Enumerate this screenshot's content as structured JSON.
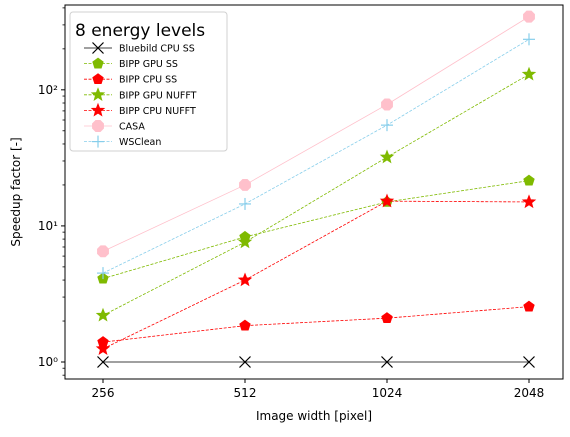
{
  "chart_data": {
    "type": "line",
    "title": "",
    "legend_title": "8 energy levels",
    "legend_position": "top-left",
    "xlabel": "Image width [pixel]",
    "ylabel": "Speedup factor [-]",
    "x_scale": "log2",
    "y_scale": "log",
    "x": [
      256,
      512,
      1024,
      2048
    ],
    "x_tick_labels": [
      "256",
      "512",
      "1024",
      "2048"
    ],
    "ylim": [
      0.75,
      420
    ],
    "y_ticks": [
      1,
      10,
      100
    ],
    "y_tick_labels": [
      "10⁰",
      "10¹",
      "10²"
    ],
    "grid": false,
    "series": [
      {
        "name": "Bluebild CPU SS",
        "color": "#000000",
        "marker": "x",
        "dash": "solid",
        "values": [
          1,
          1,
          1,
          1
        ]
      },
      {
        "name": "BIPP GPU SS",
        "color": "#7fba00",
        "marker": "pentagon",
        "dash": "dashed",
        "values": [
          4.1,
          8.3,
          15.0,
          21.5
        ]
      },
      {
        "name": "BIPP CPU SS",
        "color": "#ff0000",
        "marker": "pentagon",
        "dash": "dashed",
        "values": [
          1.4,
          1.85,
          2.1,
          2.55
        ]
      },
      {
        "name": "BIPP GPU NUFFT",
        "color": "#7fba00",
        "marker": "star",
        "dash": "dashed",
        "values": [
          2.2,
          7.6,
          32.0,
          130.0
        ]
      },
      {
        "name": "BIPP CPU NUFFT",
        "color": "#ff0000",
        "marker": "star",
        "dash": "dashed",
        "values": [
          1.25,
          4.0,
          15.2,
          15.0
        ]
      },
      {
        "name": "CASA",
        "color": "#ffc0cb",
        "marker": "octagon",
        "dash": "solid",
        "values": [
          6.5,
          20.0,
          78.0,
          345.0
        ]
      },
      {
        "name": "WSClean",
        "color": "#87ceeb",
        "marker": "plus",
        "dash": "dashed",
        "values": [
          4.5,
          14.5,
          55.0,
          235.0
        ]
      }
    ]
  }
}
